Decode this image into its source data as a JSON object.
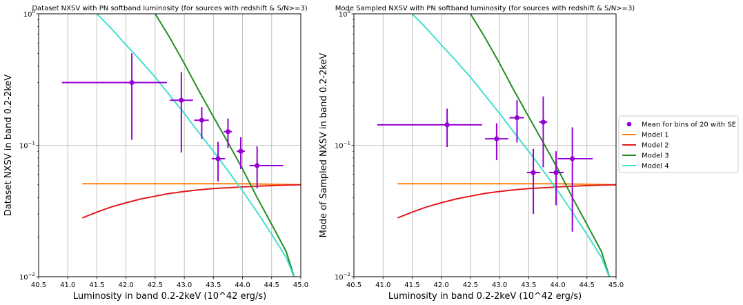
{
  "colors": {
    "data": "#9400d3",
    "model1": "#ff7f0e",
    "model2": "#e31a1c",
    "model3": "#228b22",
    "model4": "#40e0d0",
    "grid": "#b0b0b0"
  },
  "legend": {
    "placement": "right",
    "entries": [
      {
        "label": "Mean for bins of 20 with SE",
        "kind": "marker",
        "color": "#9400d3"
      },
      {
        "label": "Model 1",
        "kind": "line",
        "color": "#ff7f0e"
      },
      {
        "label": "Model 2",
        "kind": "line",
        "color": "#e31a1c"
      },
      {
        "label": "Model 3",
        "kind": "line",
        "color": "#228b22"
      },
      {
        "label": "Model 4",
        "kind": "line",
        "color": "#40e0d0"
      }
    ]
  },
  "chart_data": [
    {
      "type": "scatter",
      "title": "Dataset NXSV with PN softband luminosity (for sources with redshift & S/N>=3)",
      "xlabel": "Luminosity in band 0.2-2keV (10^42 erg/s)",
      "ylabel": "Dataset NXSV in band 0.2-2keV",
      "xlim": [
        40.5,
        45.0
      ],
      "ylim": [
        0.01,
        1.0
      ],
      "yscale": "log",
      "grid": true,
      "xticks": [
        "40.5",
        "41.0",
        "41.5",
        "42.0",
        "42.5",
        "43.0",
        "43.5",
        "44.0",
        "44.5",
        "45.0"
      ],
      "yticks": [
        {
          "value": 0.01,
          "base": "10",
          "exp": "−2"
        },
        {
          "value": 0.1,
          "base": "10",
          "exp": "−1"
        },
        {
          "value": 1.0,
          "base": "10",
          "exp": "0"
        }
      ],
      "points": [
        {
          "x": 42.1,
          "y": 0.3,
          "xlo": 40.9,
          "xhi": 42.7,
          "ylo": 0.11,
          "yhi": 0.5
        },
        {
          "x": 42.95,
          "y": 0.22,
          "xlo": 42.75,
          "xhi": 43.15,
          "ylo": 0.088,
          "yhi": 0.36
        },
        {
          "x": 43.3,
          "y": 0.155,
          "xlo": 43.17,
          "xhi": 43.42,
          "ylo": 0.112,
          "yhi": 0.195
        },
        {
          "x": 43.58,
          "y": 0.079,
          "xlo": 43.47,
          "xhi": 43.7,
          "ylo": 0.053,
          "yhi": 0.106
        },
        {
          "x": 43.75,
          "y": 0.127,
          "xlo": 43.68,
          "xhi": 43.82,
          "ylo": 0.095,
          "yhi": 0.16
        },
        {
          "x": 43.97,
          "y": 0.09,
          "xlo": 43.9,
          "xhi": 44.04,
          "ylo": 0.066,
          "yhi": 0.115
        },
        {
          "x": 44.25,
          "y": 0.07,
          "xlo": 44.12,
          "xhi": 44.7,
          "ylo": 0.047,
          "yhi": 0.098
        }
      ],
      "series": [
        {
          "name": "Model 1",
          "x": [
            41.25,
            42.0,
            43.0,
            44.0,
            45.0
          ],
          "values": [
            0.051,
            0.051,
            0.051,
            0.051,
            0.05
          ]
        },
        {
          "name": "Model 2",
          "x": [
            41.25,
            41.5,
            41.75,
            42.0,
            42.25,
            42.5,
            42.75,
            43.0,
            43.25,
            43.5,
            43.75,
            44.0,
            44.25,
            44.5,
            44.75,
            45.0
          ],
          "values": [
            0.028,
            0.031,
            0.034,
            0.0365,
            0.039,
            0.041,
            0.043,
            0.0445,
            0.0458,
            0.0468,
            0.0475,
            0.0482,
            0.0488,
            0.0493,
            0.0497,
            0.05
          ]
        },
        {
          "name": "Model 3",
          "x": [
            42.5,
            42.75,
            43.0,
            43.25,
            43.5,
            43.75,
            44.0,
            44.25,
            44.5,
            44.75,
            44.9
          ],
          "values": [
            1.0,
            0.66,
            0.42,
            0.26,
            0.165,
            0.105,
            0.066,
            0.04,
            0.025,
            0.0155,
            0.0095
          ]
        },
        {
          "name": "Model 4",
          "x": [
            41.5,
            41.75,
            42.0,
            42.25,
            42.5,
            42.75,
            43.0,
            43.25,
            43.5,
            43.75,
            44.0,
            44.25,
            44.5,
            44.75,
            44.9
          ],
          "values": [
            1.0,
            0.77,
            0.58,
            0.44,
            0.33,
            0.24,
            0.175,
            0.125,
            0.09,
            0.064,
            0.045,
            0.031,
            0.021,
            0.014,
            0.0095
          ]
        }
      ]
    },
    {
      "type": "scatter",
      "title": "Mode Sampled NXSV with PN softband luminosity (for sources with redshift & S/N>=3)",
      "xlabel": "Luminosity in band 0.2-2keV (10^42 erg/s)",
      "ylabel": "Mode of Sampled NXSV in band 0.2-2keV",
      "xlim": [
        40.5,
        45.0
      ],
      "ylim": [
        0.01,
        1.0
      ],
      "yscale": "log",
      "grid": true,
      "xticks": [
        "40.5",
        "41.0",
        "41.5",
        "42.0",
        "42.5",
        "43.0",
        "43.5",
        "44.0",
        "44.5",
        "45.0"
      ],
      "yticks": [
        {
          "value": 0.01,
          "base": "10",
          "exp": "−2"
        },
        {
          "value": 0.1,
          "base": "10",
          "exp": "−1"
        },
        {
          "value": 1.0,
          "base": "10",
          "exp": "0"
        }
      ],
      "points": [
        {
          "x": 42.1,
          "y": 0.143,
          "xlo": 40.9,
          "xhi": 42.7,
          "ylo": 0.097,
          "yhi": 0.19
        },
        {
          "x": 42.95,
          "y": 0.112,
          "xlo": 42.75,
          "xhi": 43.15,
          "ylo": 0.077,
          "yhi": 0.147
        },
        {
          "x": 43.3,
          "y": 0.162,
          "xlo": 43.17,
          "xhi": 43.42,
          "ylo": 0.105,
          "yhi": 0.22
        },
        {
          "x": 43.58,
          "y": 0.062,
          "xlo": 43.47,
          "xhi": 43.7,
          "ylo": 0.03,
          "yhi": 0.094
        },
        {
          "x": 43.75,
          "y": 0.15,
          "xlo": 43.68,
          "xhi": 43.82,
          "ylo": 0.068,
          "yhi": 0.235
        },
        {
          "x": 43.97,
          "y": 0.062,
          "xlo": 43.85,
          "xhi": 44.1,
          "ylo": 0.035,
          "yhi": 0.09
        },
        {
          "x": 44.25,
          "y": 0.079,
          "xlo": 44.0,
          "xhi": 44.6,
          "ylo": 0.022,
          "yhi": 0.137
        }
      ],
      "series": [
        {
          "name": "Model 1",
          "x": [
            41.25,
            42.0,
            43.0,
            44.0,
            45.0
          ],
          "values": [
            0.051,
            0.051,
            0.051,
            0.051,
            0.05
          ]
        },
        {
          "name": "Model 2",
          "x": [
            41.25,
            41.5,
            41.75,
            42.0,
            42.25,
            42.5,
            42.75,
            43.0,
            43.25,
            43.5,
            43.75,
            44.0,
            44.25,
            44.5,
            44.75,
            45.0
          ],
          "values": [
            0.028,
            0.031,
            0.034,
            0.0365,
            0.039,
            0.041,
            0.043,
            0.0445,
            0.0458,
            0.0468,
            0.0475,
            0.0482,
            0.0488,
            0.0493,
            0.0497,
            0.05
          ]
        },
        {
          "name": "Model 3",
          "x": [
            42.5,
            42.75,
            43.0,
            43.25,
            43.5,
            43.75,
            44.0,
            44.25,
            44.5,
            44.75,
            44.9
          ],
          "values": [
            1.0,
            0.66,
            0.42,
            0.26,
            0.165,
            0.105,
            0.066,
            0.04,
            0.025,
            0.0155,
            0.0095
          ]
        },
        {
          "name": "Model 4",
          "x": [
            41.5,
            41.75,
            42.0,
            42.25,
            42.5,
            42.75,
            43.0,
            43.25,
            43.5,
            43.75,
            44.0,
            44.25,
            44.5,
            44.75,
            44.9
          ],
          "values": [
            1.0,
            0.77,
            0.58,
            0.44,
            0.33,
            0.24,
            0.175,
            0.125,
            0.09,
            0.064,
            0.045,
            0.031,
            0.021,
            0.014,
            0.0095
          ]
        }
      ]
    }
  ]
}
